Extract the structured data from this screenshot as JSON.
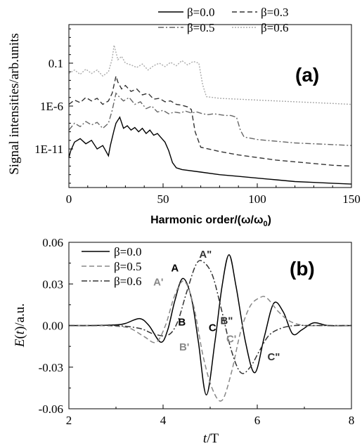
{
  "chart_data": [
    {
      "type": "line",
      "panel_label": "(a)",
      "xlabel": "Harmonic order/(ω/ω",
      "xlabel_sub": "0",
      "xlabel_close": ")",
      "ylabel": "Signal intensities/arb.units",
      "xlim": [
        0,
        150
      ],
      "ylim_log10": [
        -15.5,
        3.5
      ],
      "yscale": "log",
      "xticks": [
        0,
        50,
        100,
        150
      ],
      "xtick_labels": [
        "0",
        "50",
        "100",
        "150"
      ],
      "yticks_log10": [
        -1,
        -6,
        -11
      ],
      "ytick_labels": [
        "0.1",
        "1E-6",
        "1E-11"
      ],
      "legend_position": "top, two columns",
      "grid": false,
      "series": [
        {
          "name": "β=0.0",
          "color": "#000000",
          "dash": "solid",
          "x_log10": [
            [
              0,
              -12.0
            ],
            [
              1,
              -11.2
            ],
            [
              3,
              -10.2
            ],
            [
              6,
              -9.8
            ],
            [
              9,
              -10.4
            ],
            [
              12,
              -10.0
            ],
            [
              15,
              -11.0
            ],
            [
              18,
              -10.6
            ],
            [
              21,
              -11.8
            ],
            [
              22,
              -10.6
            ],
            [
              24,
              -8.8
            ],
            [
              25,
              -8.0
            ],
            [
              27,
              -7.3
            ],
            [
              29,
              -8.6
            ],
            [
              31,
              -8.3
            ],
            [
              33,
              -8.8
            ],
            [
              35,
              -8.5
            ],
            [
              37,
              -9.0
            ],
            [
              39,
              -8.6
            ],
            [
              41,
              -9.2
            ],
            [
              43,
              -8.8
            ],
            [
              45,
              -9.4
            ],
            [
              47,
              -9.2
            ],
            [
              49,
              -9.7
            ],
            [
              51,
              -10.2
            ],
            [
              53,
              -11.2
            ],
            [
              55,
              -12.6
            ],
            [
              57,
              -13.2
            ],
            [
              60,
              -13.4
            ],
            [
              70,
              -13.7
            ],
            [
              80,
              -14.0
            ],
            [
              90,
              -14.2
            ],
            [
              100,
              -14.4
            ],
            [
              110,
              -14.6
            ],
            [
              120,
              -14.8
            ],
            [
              130,
              -14.9
            ],
            [
              140,
              -15.0
            ],
            [
              150,
              -15.1
            ]
          ]
        },
        {
          "name": "β=0.3",
          "color": "#333333",
          "dash": "dashed",
          "x_log10": [
            [
              0,
              -5.8
            ],
            [
              3,
              -5.3
            ],
            [
              6,
              -5.6
            ],
            [
              9,
              -5.0
            ],
            [
              12,
              -5.4
            ],
            [
              15,
              -5.1
            ],
            [
              18,
              -5.8
            ],
            [
              21,
              -5.4
            ],
            [
              23,
              -4.5
            ],
            [
              25,
              -2.5
            ],
            [
              26,
              -3.2
            ],
            [
              28,
              -4.0
            ],
            [
              30,
              -3.6
            ],
            [
              33,
              -4.3
            ],
            [
              36,
              -4.0
            ],
            [
              39,
              -4.7
            ],
            [
              42,
              -4.5
            ],
            [
              45,
              -5.2
            ],
            [
              48,
              -5.1
            ],
            [
              51,
              -5.5
            ],
            [
              54,
              -5.4
            ],
            [
              57,
              -5.8
            ],
            [
              60,
              -5.9
            ],
            [
              63,
              -6.1
            ],
            [
              65,
              -6.4
            ],
            [
              67,
              -9.0
            ],
            [
              70,
              -10.8
            ],
            [
              80,
              -11.3
            ],
            [
              90,
              -11.7
            ],
            [
              100,
              -12.0
            ],
            [
              110,
              -12.3
            ],
            [
              120,
              -12.5
            ],
            [
              130,
              -12.7
            ],
            [
              140,
              -12.9
            ],
            [
              150,
              -13.0
            ]
          ]
        },
        {
          "name": "β=0.5",
          "color": "#666666",
          "dash": "dashdot",
          "x_log10": [
            [
              0,
              -8.8
            ],
            [
              3,
              -8.0
            ],
            [
              6,
              -8.4
            ],
            [
              9,
              -7.8
            ],
            [
              12,
              -8.2
            ],
            [
              15,
              -7.9
            ],
            [
              18,
              -8.6
            ],
            [
              21,
              -8.0
            ],
            [
              23,
              -6.5
            ],
            [
              25,
              -4.5
            ],
            [
              27,
              -5.0
            ],
            [
              29,
              -5.4
            ],
            [
              32,
              -5.0
            ],
            [
              35,
              -5.8
            ],
            [
              38,
              -5.5
            ],
            [
              41,
              -6.3
            ],
            [
              44,
              -6.0
            ],
            [
              47,
              -6.7
            ],
            [
              50,
              -6.5
            ],
            [
              53,
              -6.9
            ],
            [
              56,
              -6.7
            ],
            [
              59,
              -6.8
            ],
            [
              62,
              -6.6
            ],
            [
              65,
              -6.8
            ],
            [
              68,
              -6.7
            ],
            [
              71,
              -6.9
            ],
            [
              74,
              -7.0
            ],
            [
              77,
              -6.9
            ],
            [
              80,
              -7.0
            ],
            [
              83,
              -7.1
            ],
            [
              86,
              -7.1
            ],
            [
              89,
              -7.3
            ],
            [
              91,
              -8.8
            ],
            [
              93,
              -9.6
            ],
            [
              100,
              -9.9
            ],
            [
              110,
              -10.1
            ],
            [
              120,
              -10.3
            ],
            [
              130,
              -10.4
            ],
            [
              140,
              -10.5
            ],
            [
              150,
              -10.6
            ]
          ]
        },
        {
          "name": "β=0.6",
          "color": "#aaaaaa",
          "dash": "dotted",
          "x_log10": [
            [
              0,
              -2.2
            ],
            [
              3,
              -1.8
            ],
            [
              6,
              -2.3
            ],
            [
              9,
              -1.7
            ],
            [
              12,
              -2.2
            ],
            [
              15,
              -1.8
            ],
            [
              18,
              -2.5
            ],
            [
              21,
              -2.0
            ],
            [
              23,
              -0.5
            ],
            [
              24,
              1.1
            ],
            [
              26,
              -0.6
            ],
            [
              28,
              -0.2
            ],
            [
              30,
              -1.0
            ],
            [
              33,
              -1.2
            ],
            [
              36,
              -1.5
            ],
            [
              39,
              -1.1
            ],
            [
              42,
              -1.8
            ],
            [
              45,
              -1.3
            ],
            [
              48,
              -1.0
            ],
            [
              51,
              -1.4
            ],
            [
              54,
              -0.9
            ],
            [
              57,
              -1.3
            ],
            [
              60,
              -0.7
            ],
            [
              63,
              -1.2
            ],
            [
              66,
              -0.8
            ],
            [
              69,
              -1.0
            ],
            [
              71,
              -3.5
            ],
            [
              73,
              -4.9
            ],
            [
              80,
              -5.1
            ],
            [
              90,
              -5.2
            ],
            [
              100,
              -5.3
            ],
            [
              110,
              -5.4
            ],
            [
              120,
              -5.5
            ],
            [
              130,
              -5.6
            ],
            [
              140,
              -5.7
            ],
            [
              150,
              -5.8
            ]
          ]
        }
      ]
    },
    {
      "type": "line",
      "panel_label": "(b)",
      "xlabel_italic": "t",
      "xlabel_rest": "/T",
      "ylabel_italic": "E",
      "ylabel_rest_open": "(",
      "ylabel_italic_t": "t",
      "ylabel_rest": ")/a.u.",
      "xlim": [
        2,
        8
      ],
      "ylim": [
        -0.06,
        0.06
      ],
      "xticks": [
        2,
        4,
        6,
        8
      ],
      "xtick_labels": [
        "2",
        "4",
        "6",
        "8"
      ],
      "yticks": [
        -0.06,
        -0.03,
        0.0,
        0.03,
        0.06
      ],
      "ytick_labels": [
        "-0.06",
        "-0.03",
        "0.00",
        "0.03",
        "0.06"
      ],
      "legend_position": "top-left",
      "grid": false,
      "series": [
        {
          "name": "β=0.0",
          "color": "#000000",
          "dash": "solid",
          "x": [
            2.0,
            2.5,
            3.0,
            3.2,
            3.5,
            3.7,
            3.95,
            4.1,
            4.25,
            4.42,
            4.6,
            4.75,
            4.92,
            5.1,
            5.25,
            5.4,
            5.55,
            5.75,
            5.95,
            6.15,
            6.35,
            6.55,
            6.75,
            6.95,
            7.2,
            7.5,
            8.0
          ],
          "y": [
            0.0,
            0.0,
            0.0005,
            0.0015,
            0.005,
            0.0,
            -0.012,
            -0.003,
            0.018,
            0.034,
            0.02,
            -0.012,
            -0.05,
            -0.012,
            0.028,
            0.051,
            0.028,
            -0.012,
            -0.034,
            -0.008,
            0.016,
            0.01,
            -0.006,
            -0.003,
            0.002,
            0.0,
            0.0
          ]
        },
        {
          "name": "β=0.5",
          "color": "#888888",
          "dash": "dashed",
          "x": [
            2.0,
            2.5,
            3.0,
            3.3,
            3.6,
            3.85,
            4.05,
            4.25,
            4.45,
            4.65,
            4.85,
            5.05,
            5.25,
            5.45,
            5.65,
            5.85,
            6.05,
            6.2,
            6.45,
            6.7,
            7.0,
            7.3,
            8.0
          ],
          "y": [
            0.0,
            0.0,
            -0.0005,
            -0.002,
            -0.008,
            -0.012,
            0.0,
            0.022,
            0.032,
            0.014,
            -0.022,
            -0.046,
            -0.054,
            -0.034,
            -0.004,
            0.014,
            0.02,
            0.02,
            0.01,
            0.003,
            0.0,
            0.0,
            0.0
          ]
        },
        {
          "name": "β=0.6",
          "color": "#333333",
          "dash": "dashdot",
          "x": [
            2.0,
            2.5,
            3.0,
            3.5,
            3.8,
            4.1,
            4.3,
            4.5,
            4.7,
            4.85,
            5.05,
            5.25,
            5.45,
            5.65,
            5.85,
            6.05,
            6.25,
            6.5,
            6.8,
            7.2,
            8.0
          ],
          "y": [
            0.0,
            0.0,
            0.0,
            -0.002,
            -0.006,
            -0.007,
            0.002,
            0.024,
            0.044,
            0.046,
            0.036,
            0.01,
            -0.018,
            -0.034,
            -0.03,
            -0.018,
            -0.007,
            -0.002,
            0.0,
            0.0,
            0.0
          ]
        }
      ],
      "annotations": [
        {
          "text": "A",
          "x": 4.25,
          "y": 0.042,
          "color": "#000000"
        },
        {
          "text": "A'",
          "x": 3.9,
          "y": 0.032,
          "color": "#888888"
        },
        {
          "text": "A\"",
          "x": 4.9,
          "y": 0.052,
          "color": "#333333"
        },
        {
          "text": "B",
          "x": 4.4,
          "y": 0.003,
          "color": "#000000"
        },
        {
          "text": "B'",
          "x": 4.45,
          "y": -0.015,
          "color": "#888888"
        },
        {
          "text": "B\"",
          "x": 5.35,
          "y": 0.004,
          "color": "#333333"
        },
        {
          "text": "C",
          "x": 5.05,
          "y": -0.001,
          "color": "#000000"
        },
        {
          "text": "C'",
          "x": 5.45,
          "y": -0.009,
          "color": "#888888"
        },
        {
          "text": "C\"",
          "x": 6.35,
          "y": -0.022,
          "color": "#333333"
        }
      ]
    }
  ]
}
